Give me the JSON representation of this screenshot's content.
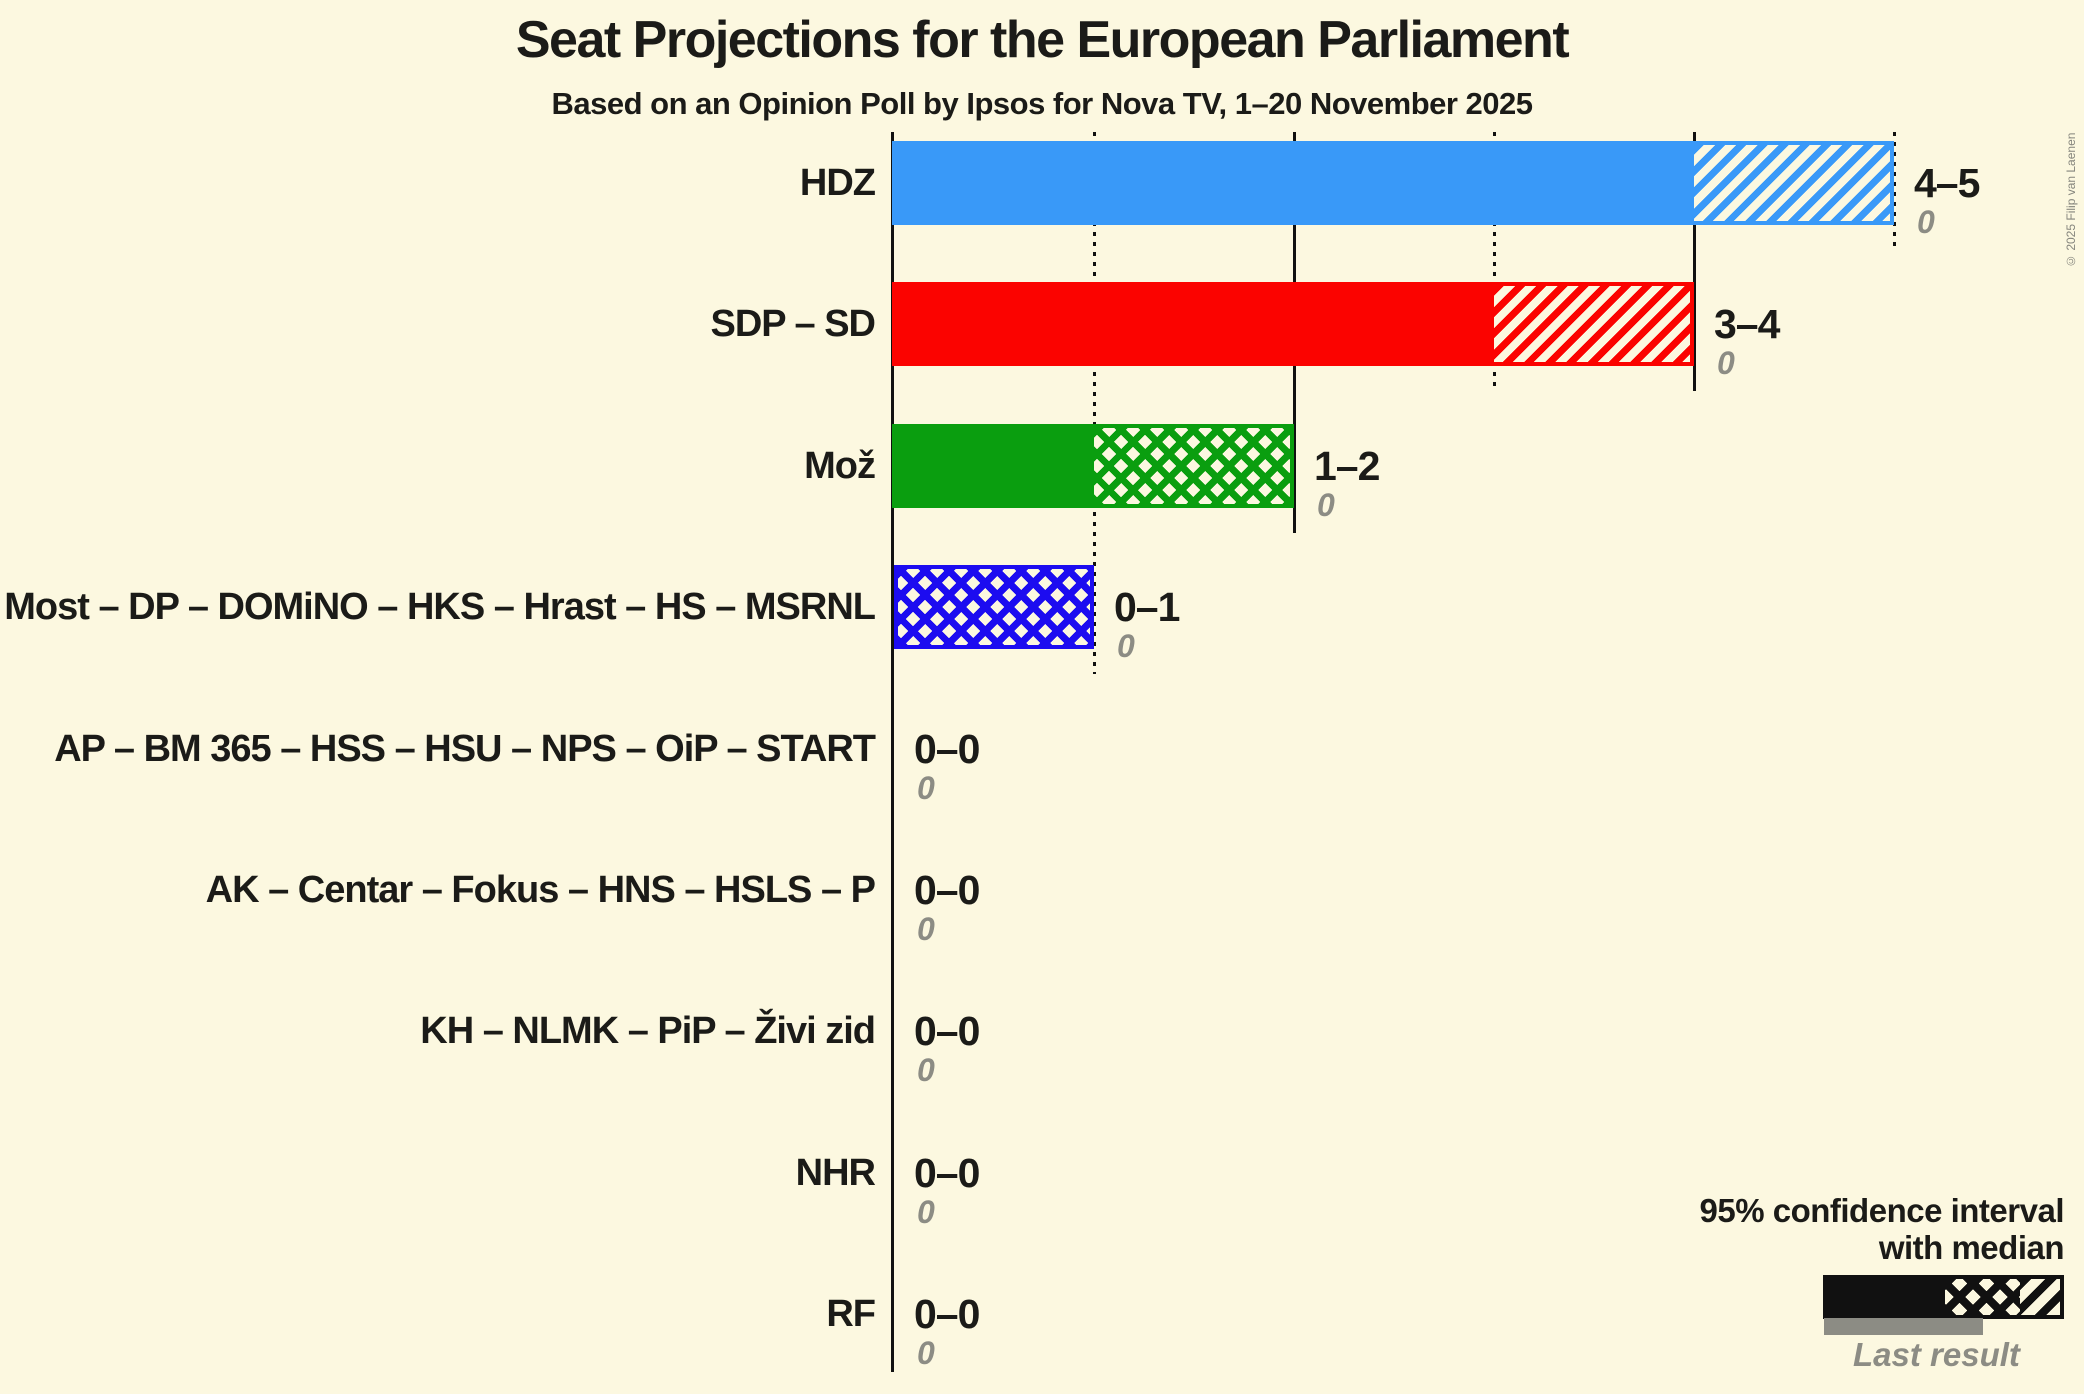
{
  "title": "Seat Projections for the European Parliament",
  "subtitle": "Based on an Opinion Poll by Ipsos for Nova TV, 1–20 November 2025",
  "copyright": "© 2025 Filip van Laenen",
  "colors": {
    "background": "#fcf8e0",
    "text": "#1b1b18",
    "muted_gray": "#8c8c84",
    "gridline": "#111111",
    "hdz_blue": "#3999f8",
    "sdp_red": "#fb0300",
    "moz_green": "#0a9e0f",
    "most_blue": "#1c0cf0"
  },
  "legend": {
    "line1": "95% confidence interval",
    "line2": "with median",
    "last_result": "Last result"
  },
  "chart_data": {
    "type": "bar",
    "title": "Seat Projections for the European Parliament",
    "subtitle": "Based on an Opinion Poll by Ipsos for Nova TV, 1–20 November 2025",
    "xlabel": "",
    "ylabel": "",
    "x_axis": {
      "min": 0,
      "max": 5,
      "solid_ticks": [
        0,
        2,
        4
      ],
      "dotted_ticks": [
        1,
        3,
        5
      ],
      "tick_labels_shown": false
    },
    "legend_position": "bottom-right",
    "grid": "vertical-partial",
    "parties": [
      {
        "label": "HDZ",
        "ci_low": 4,
        "median": 4,
        "ci_high": 5,
        "last_result": 0,
        "range_label": "4–5",
        "last_result_label": "0",
        "color": "#3999f8"
      },
      {
        "label": "SDP – SD",
        "ci_low": 3,
        "median": 3,
        "ci_high": 4,
        "last_result": 0,
        "range_label": "3–4",
        "last_result_label": "0",
        "color": "#fb0300"
      },
      {
        "label": "Mož",
        "ci_low": 1,
        "median": 2,
        "ci_high": 2,
        "last_result": 0,
        "range_label": "1–2",
        "last_result_label": "0",
        "color": "#0a9e0f"
      },
      {
        "label": "Most – DP – DOMiNO – HKS – Hrast – HS – MSRNL",
        "ci_low": 0,
        "median": 1,
        "ci_high": 1,
        "last_result": 0,
        "range_label": "0–1",
        "last_result_label": "0",
        "color": "#1c0cf0"
      },
      {
        "label": "AP – BM 365 – HSS – HSU – NPS – OiP – START",
        "ci_low": 0,
        "median": 0,
        "ci_high": 0,
        "last_result": 0,
        "range_label": "0–0",
        "last_result_label": "0",
        "color": "#777777"
      },
      {
        "label": "AK – Centar – Fokus – HNS – HSLS – P",
        "ci_low": 0,
        "median": 0,
        "ci_high": 0,
        "last_result": 0,
        "range_label": "0–0",
        "last_result_label": "0",
        "color": "#777777"
      },
      {
        "label": "KH – NLMK – PiP – Živi zid",
        "ci_low": 0,
        "median": 0,
        "ci_high": 0,
        "last_result": 0,
        "range_label": "0–0",
        "last_result_label": "0",
        "color": "#777777"
      },
      {
        "label": "NHR",
        "ci_low": 0,
        "median": 0,
        "ci_high": 0,
        "last_result": 0,
        "range_label": "0–0",
        "last_result_label": "0",
        "color": "#777777"
      },
      {
        "label": "RF",
        "ci_low": 0,
        "median": 0,
        "ci_high": 0,
        "last_result": 0,
        "range_label": "0–0",
        "last_result_label": "0",
        "color": "#777777"
      }
    ]
  }
}
